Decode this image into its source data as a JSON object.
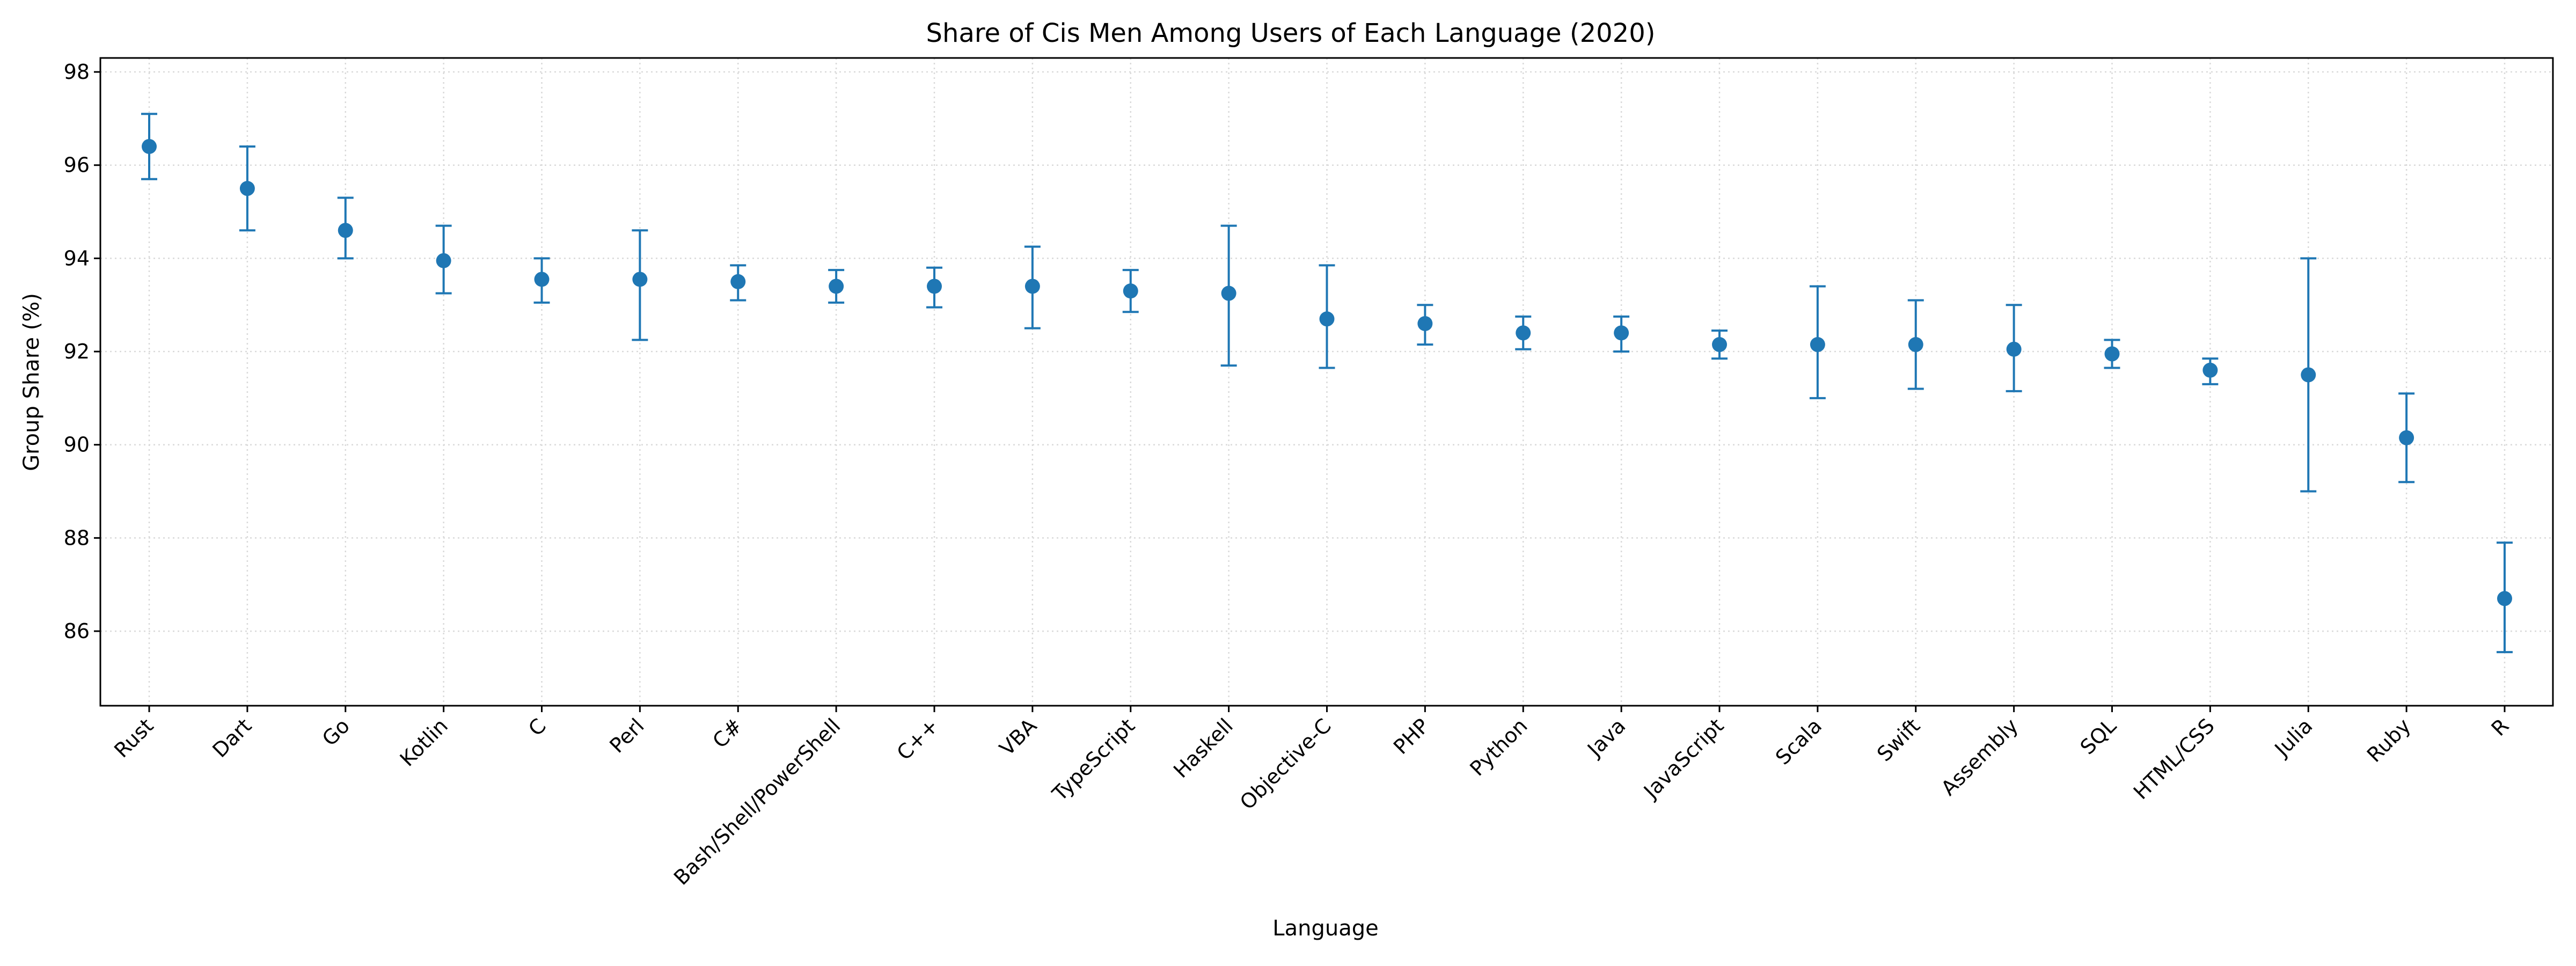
{
  "chart_data": {
    "type": "scatter",
    "title": "Share of Cis Men Among Users of Each Language (2020)",
    "xlabel": "Language",
    "ylabel": "Group Share (%)",
    "ylim": [
      84.4,
      98.3
    ],
    "yticks": [
      86,
      88,
      90,
      92,
      94,
      96,
      98
    ],
    "grid": true,
    "categories": [
      "Rust",
      "Dart",
      "Go",
      "Kotlin",
      "C",
      "Perl",
      "C#",
      "Bash/Shell/PowerShell",
      "C++",
      "VBA",
      "TypeScript",
      "Haskell",
      "Objective-C",
      "PHP",
      "Python",
      "Java",
      "JavaScript",
      "Scala",
      "Swift",
      "Assembly",
      "SQL",
      "HTML/CSS",
      "Julia",
      "Ruby",
      "R"
    ],
    "values": [
      96.4,
      95.5,
      94.6,
      93.95,
      93.55,
      93.55,
      93.5,
      93.4,
      93.4,
      93.4,
      93.3,
      93.25,
      92.7,
      92.6,
      92.4,
      92.4,
      92.15,
      92.15,
      92.15,
      92.05,
      91.95,
      91.6,
      91.5,
      90.15,
      86.7
    ],
    "lower": [
      95.7,
      94.6,
      94.0,
      93.25,
      93.05,
      92.25,
      93.1,
      93.05,
      92.95,
      92.5,
      92.85,
      91.7,
      91.65,
      92.15,
      92.05,
      92.0,
      91.85,
      91.0,
      91.2,
      91.15,
      91.65,
      91.3,
      89.0,
      89.2,
      85.55
    ],
    "upper": [
      97.1,
      96.4,
      95.3,
      94.7,
      94.0,
      94.6,
      93.85,
      93.75,
      93.8,
      94.25,
      93.75,
      94.7,
      93.85,
      93.0,
      92.75,
      92.75,
      92.45,
      93.4,
      93.1,
      93.0,
      92.25,
      91.85,
      94.0,
      91.1,
      87.9
    ],
    "series_color": "#1f77b4"
  }
}
